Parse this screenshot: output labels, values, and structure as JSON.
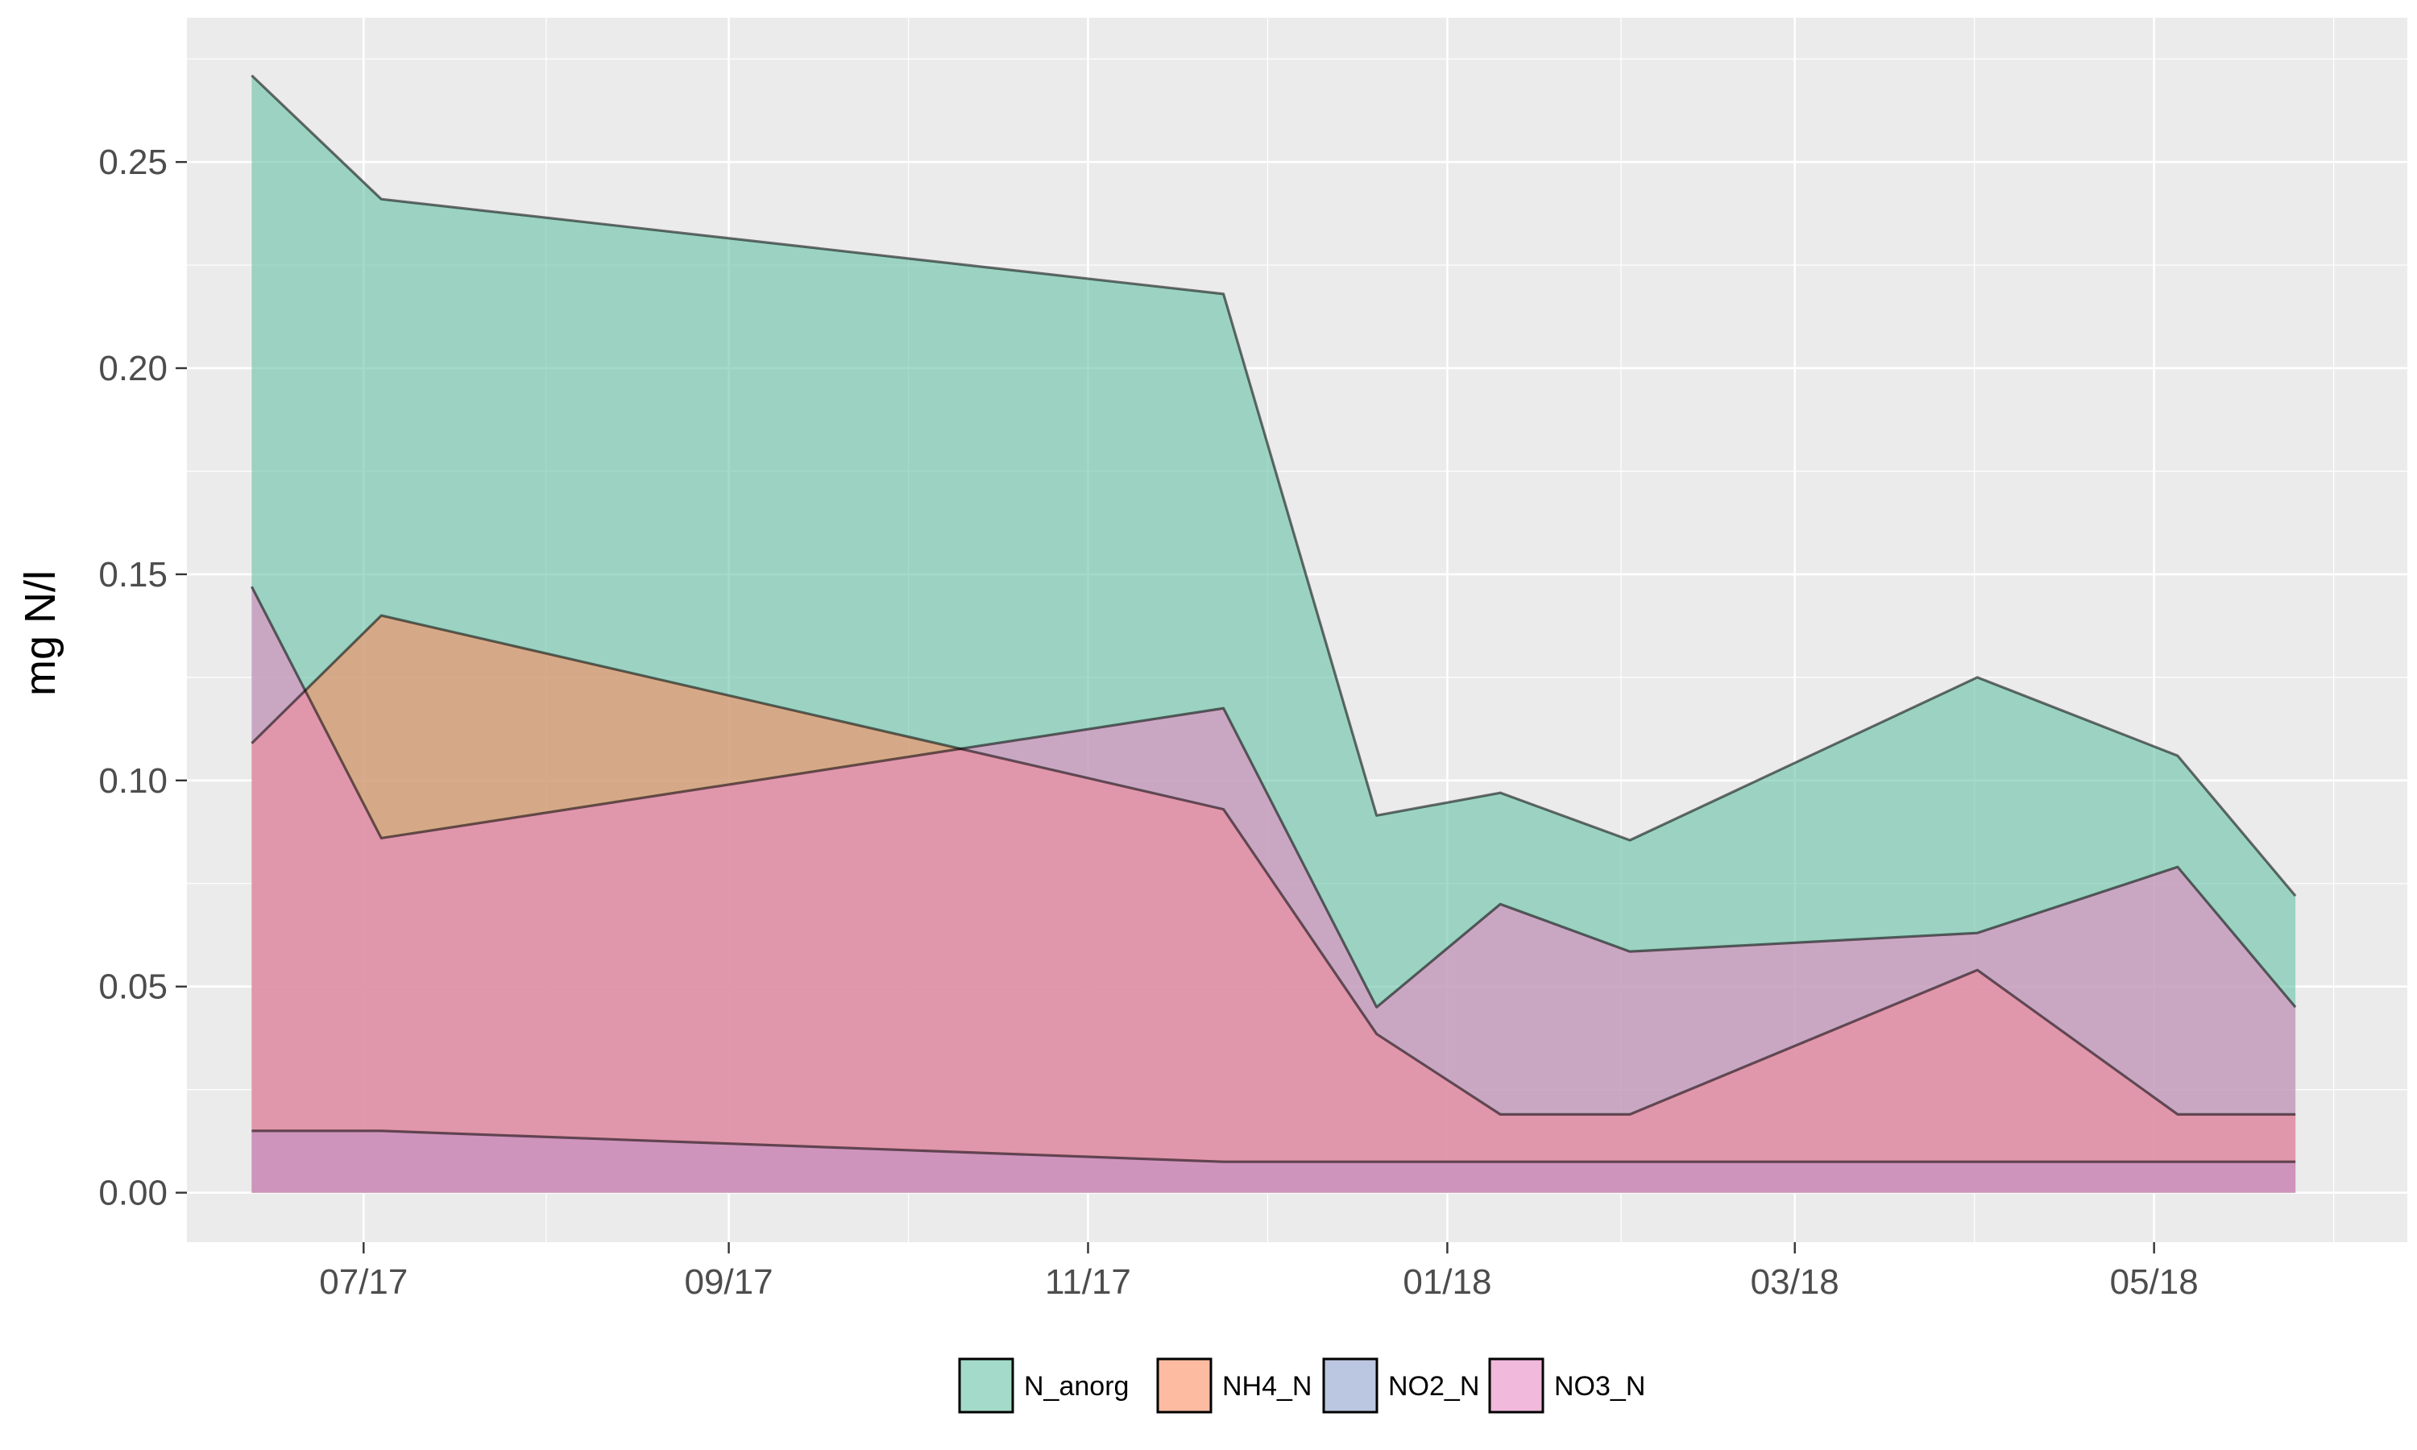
{
  "chart_data": {
    "type": "area",
    "title": "",
    "xlabel": "",
    "ylabel": "mg N/l",
    "xlim": [
      "2017-06-01",
      "2018-06-13"
    ],
    "ylim": [
      -0.012,
      0.285
    ],
    "x_ticks": [
      {
        "date": "2017-07-01",
        "label": "07/17"
      },
      {
        "date": "2017-09-01",
        "label": "09/17"
      },
      {
        "date": "2017-11-01",
        "label": "11/17"
      },
      {
        "date": "2018-01-01",
        "label": "01/18"
      },
      {
        "date": "2018-03-01",
        "label": "03/18"
      },
      {
        "date": "2018-05-01",
        "label": "05/18"
      }
    ],
    "y_ticks": [
      0.0,
      0.05,
      0.1,
      0.15,
      0.2,
      0.25
    ],
    "y_tick_labels": [
      "0.00",
      "0.05",
      "0.10",
      "0.15",
      "0.20",
      "0.25"
    ],
    "grid": true,
    "legend_position": "bottom",
    "series": [
      {
        "name": "N_anorg",
        "color": "#66c2a5",
        "points": [
          [
            "2017-06-12",
            0.271
          ],
          [
            "2017-07-04",
            0.241
          ],
          [
            "2017-11-24",
            0.218
          ],
          [
            "2017-12-20",
            0.0915
          ],
          [
            "2018-01-10",
            0.097
          ],
          [
            "2018-02-01",
            0.0855
          ],
          [
            "2018-04-01",
            0.125
          ],
          [
            "2018-05-05",
            0.106
          ],
          [
            "2018-05-25",
            0.072
          ]
        ]
      },
      {
        "name": "NH4_N",
        "color": "#fc8d62",
        "points": [
          [
            "2017-06-12",
            0.109
          ],
          [
            "2017-07-04",
            0.14
          ],
          [
            "2017-11-24",
            0.093
          ],
          [
            "2017-12-20",
            0.0385
          ],
          [
            "2018-01-10",
            0.019
          ],
          [
            "2018-02-01",
            0.019
          ],
          [
            "2018-04-01",
            0.054
          ],
          [
            "2018-05-05",
            0.019
          ],
          [
            "2018-05-25",
            0.019
          ]
        ]
      },
      {
        "name": "NO2_N",
        "color": "#8da0cb",
        "points": [
          [
            "2017-06-12",
            0.015
          ],
          [
            "2017-07-04",
            0.015
          ],
          [
            "2017-11-24",
            0.0075
          ],
          [
            "2017-12-20",
            0.0075
          ],
          [
            "2018-01-10",
            0.0075
          ],
          [
            "2018-02-01",
            0.0075
          ],
          [
            "2018-04-01",
            0.0075
          ],
          [
            "2018-05-05",
            0.0075
          ],
          [
            "2018-05-25",
            0.0075
          ]
        ]
      },
      {
        "name": "NO3_N",
        "color": "#e78ac3",
        "points": [
          [
            "2017-06-12",
            0.147
          ],
          [
            "2017-07-04",
            0.086
          ],
          [
            "2017-11-24",
            0.1175
          ],
          [
            "2017-12-20",
            0.045
          ],
          [
            "2018-01-10",
            0.07
          ],
          [
            "2018-02-01",
            0.0585
          ],
          [
            "2018-04-01",
            0.063
          ],
          [
            "2018-05-05",
            0.079
          ],
          [
            "2018-05-25",
            0.045
          ]
        ]
      }
    ]
  }
}
